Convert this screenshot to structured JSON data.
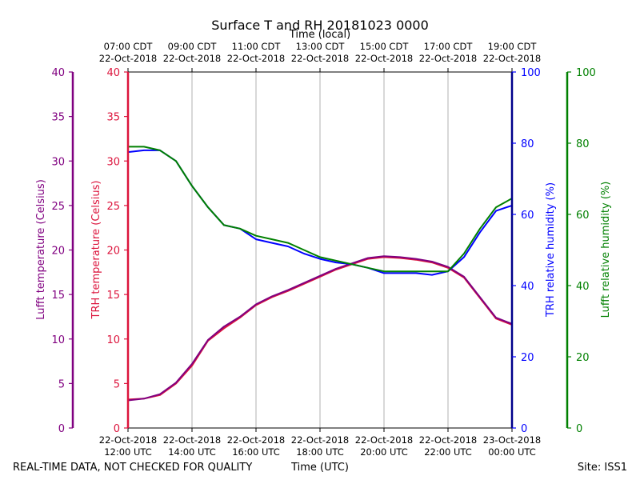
{
  "chart_data": {
    "type": "line",
    "title": "Surface T and RH 20181023 0000",
    "top_axis": {
      "label": "Time (local)",
      "ticks": [
        {
          "line1": "07:00 CDT",
          "line2": "22-Oct-2018"
        },
        {
          "line1": "09:00 CDT",
          "line2": "22-Oct-2018"
        },
        {
          "line1": "11:00 CDT",
          "line2": "22-Oct-2018"
        },
        {
          "line1": "13:00 CDT",
          "line2": "22-Oct-2018"
        },
        {
          "line1": "15:00 CDT",
          "line2": "22-Oct-2018"
        },
        {
          "line1": "17:00 CDT",
          "line2": "22-Oct-2018"
        },
        {
          "line1": "19:00 CDT",
          "line2": "22-Oct-2018"
        }
      ]
    },
    "bottom_axis": {
      "label": "Time (UTC)",
      "xlim": [
        12,
        24
      ],
      "ticks": [
        {
          "value": 12,
          "line1": "22-Oct-2018",
          "line2": "12:00 UTC"
        },
        {
          "value": 14,
          "line1": "22-Oct-2018",
          "line2": "14:00 UTC"
        },
        {
          "value": 16,
          "line1": "22-Oct-2018",
          "line2": "16:00 UTC"
        },
        {
          "value": 18,
          "line1": "22-Oct-2018",
          "line2": "18:00 UTC"
        },
        {
          "value": 20,
          "line1": "22-Oct-2018",
          "line2": "20:00 UTC"
        },
        {
          "value": 22,
          "line1": "22-Oct-2018",
          "line2": "22:00 UTC"
        },
        {
          "value": 24,
          "line1": "23-Oct-2018",
          "line2": "00:00 UTC"
        }
      ]
    },
    "left_axes": [
      {
        "label": "Lufft temperature (Celsius)",
        "color": "#800080",
        "ylim": [
          0,
          40
        ],
        "ticks": [
          "0",
          "5",
          "10",
          "15",
          "20",
          "25",
          "30",
          "35",
          "40"
        ]
      },
      {
        "label": "TRH temperature (Celsius)",
        "color": "#dc143c",
        "ylim": [
          0,
          40
        ],
        "ticks": [
          "0",
          "5",
          "10",
          "15",
          "20",
          "25",
          "30",
          "35",
          "40"
        ]
      }
    ],
    "right_axes": [
      {
        "label": "TRH relative humidity (%)",
        "color": "#0000ff",
        "spine_color": "#00008b",
        "ylim": [
          0,
          100
        ],
        "ticks": [
          "0",
          "20",
          "40",
          "60",
          "80",
          "100"
        ]
      },
      {
        "label": "Lufft relative humidity (%)",
        "color": "#008000",
        "ylim": [
          0,
          100
        ],
        "ticks": [
          "0",
          "20",
          "40",
          "60",
          "80",
          "100"
        ]
      }
    ],
    "grid": "vertical",
    "series": [
      {
        "axis": "temperature",
        "color": "#dc143c",
        "x": [
          12,
          12.5,
          13,
          13.5,
          14,
          14.5,
          15,
          15.5,
          16,
          16.5,
          17,
          17.5,
          18,
          18.5,
          19,
          19.5,
          20,
          20.5,
          21,
          21.5,
          22,
          22.5,
          23,
          23.5,
          24
        ],
        "y": [
          3.2,
          3.3,
          3.7,
          5.0,
          7.0,
          9.8,
          11.2,
          12.4,
          13.8,
          14.7,
          15.4,
          16.2,
          17.0,
          17.8,
          18.4,
          19.0,
          19.2,
          19.1,
          18.9,
          18.6,
          18.0,
          16.9,
          14.6,
          12.3,
          11.6
        ]
      },
      {
        "axis": "temperature",
        "color": "#800080",
        "x": [
          12,
          12.5,
          13,
          13.5,
          14,
          14.5,
          15,
          15.5,
          16,
          16.5,
          17,
          17.5,
          18,
          18.5,
          19,
          19.5,
          20,
          20.5,
          21,
          21.5,
          22,
          22.5,
          23,
          23.5,
          24
        ],
        "y": [
          3.1,
          3.3,
          3.8,
          5.1,
          7.2,
          9.9,
          11.4,
          12.5,
          13.9,
          14.8,
          15.5,
          16.3,
          17.1,
          17.9,
          18.5,
          19.1,
          19.3,
          19.2,
          19.0,
          18.7,
          18.1,
          17.0,
          14.7,
          12.4,
          11.7
        ]
      },
      {
        "axis": "humidity",
        "color": "#0000ff",
        "x": [
          12,
          12.5,
          13,
          13.5,
          14,
          14.5,
          15,
          15.5,
          16,
          16.5,
          17,
          17.5,
          18,
          18.5,
          19,
          19.5,
          20,
          20.5,
          21,
          21.5,
          22,
          22.5,
          23,
          23.5,
          24
        ],
        "y": [
          77.5,
          78,
          78,
          75,
          68,
          62,
          57,
          56,
          53,
          52,
          51,
          49,
          47.5,
          46.5,
          46,
          45,
          43.5,
          43.5,
          43.5,
          43,
          44,
          48,
          55,
          61,
          62.5
        ]
      },
      {
        "axis": "humidity",
        "color": "#008000",
        "x": [
          12,
          12.5,
          13,
          13.5,
          14,
          14.5,
          15,
          15.5,
          16,
          16.5,
          17,
          17.5,
          18,
          18.5,
          19,
          19.5,
          20,
          20.5,
          21,
          21.5,
          22,
          22.5,
          23,
          23.5,
          24
        ],
        "y": [
          79,
          79,
          78,
          75,
          68,
          62,
          57,
          56,
          54,
          53,
          52,
          50,
          48,
          47,
          46,
          45,
          44,
          44,
          44,
          44,
          44,
          49,
          56,
          62,
          64.5
        ]
      }
    ]
  },
  "footer": {
    "disclaimer": "REAL-TIME DATA, NOT CHECKED FOR QUALITY",
    "site": "Site: ISS1"
  }
}
